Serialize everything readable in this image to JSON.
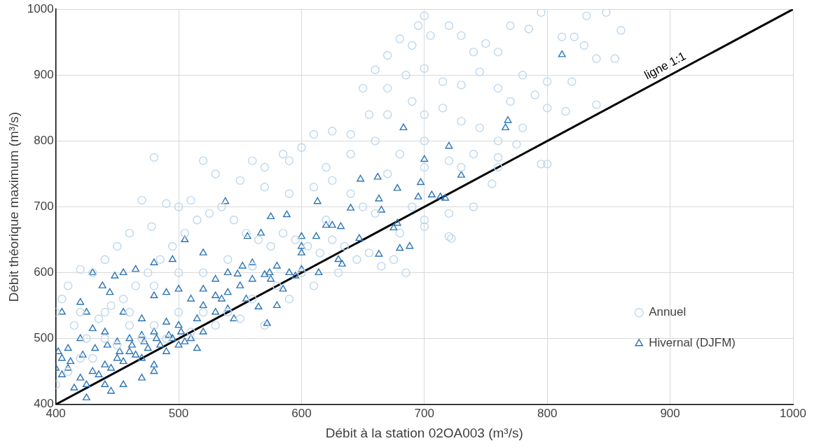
{
  "chart_data": {
    "type": "scatter",
    "xlabel": "Débit à la station 02OA003 (m³/s)",
    "ylabel": "Débit théorique maximum (m³/s)",
    "xlim": [
      400,
      1000
    ],
    "ylim": [
      400,
      1000
    ],
    "xticks": [
      400,
      500,
      600,
      700,
      800,
      900,
      1000
    ],
    "yticks": [
      400,
      500,
      600,
      700,
      800,
      900,
      1000
    ],
    "grid": true,
    "legend": "bottom right",
    "annotations": [
      {
        "text": "ligne 1:1",
        "x": 900,
        "y": 900
      }
    ],
    "series": [
      {
        "name": "Annuel",
        "color": "#bdd7ee",
        "marker": "circle",
        "x": [
          860,
          848,
          832,
          830,
          840,
          822,
          812,
          795,
          785,
          770,
          760,
          750,
          740,
          730,
          720,
          705,
          700,
          695,
          690,
          680,
          670,
          660,
          650,
          670,
          685,
          700,
          715,
          730,
          745,
          760,
          770,
          780,
          790,
          800,
          815,
          820,
          800,
          780,
          760,
          745,
          730,
          715,
          700,
          690,
          670,
          655,
          640,
          625,
          610,
          600,
          585,
          570,
          560,
          590,
          620,
          640,
          660,
          680,
          700,
          720,
          740,
          760,
          775,
          795,
          755,
          740,
          720,
          700,
          690,
          680,
          720,
          660,
          640,
          625,
          610,
          590,
          570,
          550,
          530,
          520,
          510,
          500,
          490,
          480,
          470,
          478,
          460,
          450,
          440,
          430,
          420,
          410,
          405,
          400,
          415,
          425,
          435,
          445,
          455,
          465,
          475,
          485,
          495,
          505,
          515,
          525,
          535,
          545,
          555,
          565,
          575,
          585,
          595,
          605,
          615,
          625,
          635,
          645,
          655,
          665,
          675,
          685,
          700,
          600,
          580,
          560,
          540,
          520,
          500,
          480,
          460,
          440,
          420,
          410,
          400,
          430,
          450,
          470,
          490,
          510,
          530,
          550,
          570,
          590,
          610,
          630,
          560,
          540,
          520,
          500,
          480,
          460,
          440,
          420,
          620,
          650,
          670,
          700,
          730,
          760,
          722,
          800,
          855,
          840
        ],
        "values": [
          968,
          995,
          990,
          945,
          925,
          958,
          958,
          995,
          970,
          975,
          935,
          948,
          935,
          960,
          975,
          960,
          990,
          975,
          945,
          955,
          930,
          908,
          880,
          880,
          900,
          910,
          890,
          885,
          905,
          880,
          860,
          900,
          870,
          890,
          845,
          890,
          850,
          820,
          800,
          820,
          830,
          850,
          840,
          860,
          840,
          840,
          810,
          815,
          810,
          790,
          780,
          760,
          770,
          770,
          760,
          780,
          800,
          780,
          800,
          770,
          780,
          775,
          795,
          765,
          735,
          700,
          690,
          680,
          700,
          660,
          655,
          690,
          720,
          740,
          730,
          720,
          730,
          740,
          750,
          770,
          710,
          700,
          705,
          775,
          710,
          670,
          660,
          640,
          620,
          600,
          605,
          580,
          560,
          540,
          520,
          500,
          530,
          550,
          560,
          580,
          600,
          620,
          640,
          660,
          680,
          690,
          700,
          680,
          660,
          650,
          640,
          660,
          650,
          640,
          630,
          650,
          640,
          620,
          630,
          610,
          620,
          600,
          670,
          600,
          580,
          560,
          540,
          540,
          540,
          520,
          520,
          500,
          470,
          450,
          430,
          470,
          490,
          500,
          500,
          510,
          520,
          530,
          520,
          560,
          580,
          600,
          610,
          620,
          600,
          600,
          580,
          540,
          540,
          540,
          680,
          700,
          750,
          760,
          760,
          760,
          652,
          765,
          925,
          855
        ]
      },
      {
        "name": "Hivernal (DJFM)",
        "color": "#2e75b6",
        "marker": "triangle",
        "x": [
          812,
          768,
          766,
          683,
          720,
          700,
          648,
          730,
          662,
          678,
          697,
          713,
          706,
          717,
          663,
          695,
          665,
          640,
          613,
          625,
          632,
          678,
          675,
          538,
          567,
          575,
          556,
          588,
          600,
          600,
          600,
          620,
          612,
          647,
          630,
          633,
          663,
          680,
          688,
          614,
          590,
          600,
          595,
          580,
          574,
          570,
          560,
          552,
          548,
          540,
          530,
          520,
          505,
          495,
          480,
          465,
          455,
          448,
          430,
          438,
          444,
          420,
          425,
          405,
          455,
          470,
          480,
          490,
          500,
          510,
          520,
          530,
          540,
          555,
          565,
          572,
          580,
          585,
          540,
          545,
          530,
          515,
          500,
          490,
          480,
          470,
          460,
          450,
          440,
          430,
          420,
          410,
          402,
          405,
          410,
          420,
          430,
          440,
          450,
          460,
          470,
          480,
          490,
          500,
          510,
          520,
          515,
          505,
          495,
          485,
          475,
          465,
          455,
          445,
          435,
          425,
          415,
          405,
          400,
          412,
          422,
          432,
          442,
          452,
          462,
          472,
          482,
          492,
          502,
          520,
          535,
          550,
          560,
          575,
          470,
          480,
          445,
          455,
          440,
          425
        ],
        "values": [
          931,
          831,
          820,
          820,
          792,
          772,
          742,
          748,
          745,
          728,
          737,
          715,
          718,
          713,
          712,
          715,
          695,
          698,
          708,
          672,
          670,
          675,
          668,
          708,
          660,
          685,
          655,
          688,
          655,
          640,
          630,
          672,
          655,
          652,
          620,
          613,
          628,
          637,
          640,
          600,
          600,
          605,
          595,
          610,
          600,
          597,
          615,
          610,
          598,
          600,
          590,
          630,
          650,
          620,
          615,
          605,
          600,
          595,
          600,
          580,
          570,
          555,
          540,
          540,
          540,
          530,
          565,
          570,
          575,
          560,
          575,
          565,
          570,
          560,
          548,
          523,
          550,
          575,
          545,
          530,
          540,
          530,
          520,
          525,
          510,
          505,
          500,
          495,
          510,
          515,
          500,
          485,
          480,
          470,
          455,
          440,
          450,
          460,
          470,
          480,
          470,
          460,
          480,
          490,
          500,
          510,
          485,
          495,
          500,
          490,
          485,
          475,
          465,
          455,
          445,
          430,
          425,
          445,
          455,
          465,
          475,
          485,
          490,
          480,
          490,
          495,
          500,
          505,
          510,
          550,
          560,
          580,
          590,
          590,
          440,
          450,
          420,
          430,
          430,
          410
        ]
      },
      {
        "type": "line",
        "color": "#000000",
        "marker": "none",
        "line_style": "solid",
        "x": [
          400,
          1000
        ],
        "values": [
          400,
          1000
        ]
      }
    ]
  }
}
